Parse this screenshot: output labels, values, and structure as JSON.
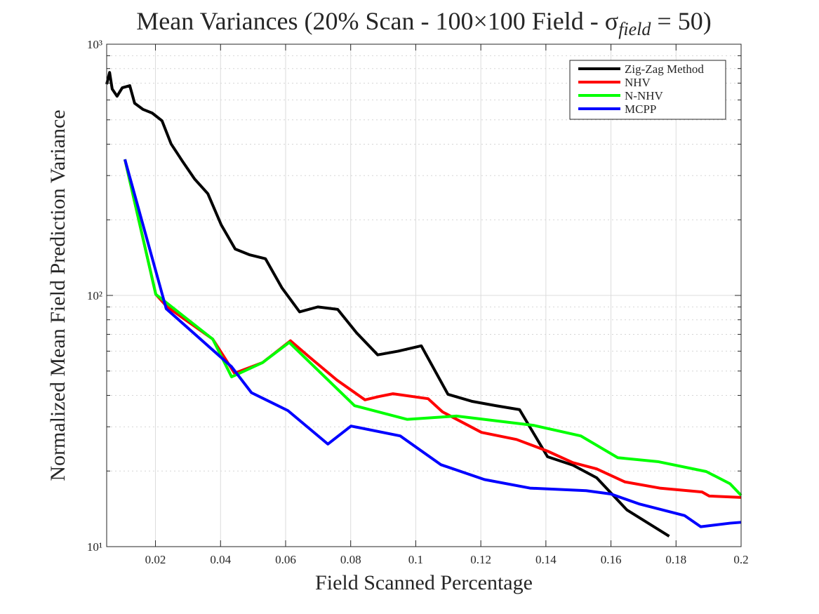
{
  "chart_data": {
    "type": "line",
    "title": [
      "Mean Variances (20% Scan - 100×100 Field - σ",
      "field",
      " = 50)"
    ],
    "xlabel": "Field Scanned Percentage",
    "ylabel": "Normalized Mean Field Prediction Variance",
    "xlim": [
      0.005,
      0.2
    ],
    "xticks": [
      0.02,
      0.04,
      0.06,
      0.08,
      0.1,
      0.12,
      0.14,
      0.16,
      0.18,
      0.2
    ],
    "ylim": [
      10,
      1000
    ],
    "log_y": true,
    "yticks": [
      {
        "value": 10,
        "label": "10¹"
      },
      {
        "value": 100,
        "label": "10²"
      },
      {
        "value": 1000,
        "label": "10³"
      }
    ],
    "yminor_ticks": [
      20,
      30,
      40,
      50,
      60,
      70,
      80,
      90,
      200,
      300,
      400,
      500,
      600,
      700,
      800,
      900
    ],
    "grid": true,
    "legend": "top-right",
    "series": [
      {
        "name": "Zig-Zag Method",
        "color": "#000000",
        "x": [
          0.005,
          0.0059,
          0.0067,
          0.0082,
          0.0098,
          0.0121,
          0.0136,
          0.0162,
          0.019,
          0.022,
          0.0248,
          0.0283,
          0.032,
          0.0361,
          0.0402,
          0.0445,
          0.049,
          0.0538,
          0.0589,
          0.0643,
          0.0699,
          0.076,
          0.0818,
          0.0883,
          0.0946,
          0.1017,
          0.1099,
          0.1172,
          0.1246,
          0.1319,
          0.1405,
          0.1483,
          0.1556,
          0.1649,
          0.1779
        ],
        "values": [
          693,
          772,
          663,
          621,
          671,
          684,
          582,
          550,
          532,
          496,
          401,
          342,
          291,
          254,
          191,
          153,
          145,
          140,
          107,
          86,
          90,
          88,
          71,
          58,
          60,
          63,
          40.4,
          37.9,
          36.4,
          35.1,
          22.8,
          21.1,
          18.8,
          14.0,
          11.0
        ]
      },
      {
        "name": "NHV",
        "color": "#ff0000",
        "x": [
          0.0106,
          0.0201,
          0.0236,
          0.0376,
          0.0443,
          0.0529,
          0.0615,
          0.0672,
          0.0758,
          0.0844,
          0.0887,
          0.093,
          0.1038,
          0.1082,
          0.1202,
          0.131,
          0.1405,
          0.1483,
          0.1556,
          0.1643,
          0.175,
          0.188,
          0.1902,
          0.2
        ],
        "values": [
          348,
          101,
          90,
          67,
          49,
          54,
          66,
          57,
          46,
          38.4,
          39.6,
          40.6,
          38.8,
          34.4,
          28.5,
          26.7,
          24.0,
          21.6,
          20.4,
          18.1,
          17.1,
          16.5,
          15.9,
          15.7
        ]
      },
      {
        "name": "N-NHV",
        "color": "#00ff00",
        "x": [
          0.0106,
          0.0201,
          0.0376,
          0.0434,
          0.0529,
          0.0611,
          0.0812,
          0.0974,
          0.1125,
          0.1362,
          0.1507,
          0.1621,
          0.1744,
          0.1893,
          0.1966,
          0.2
        ],
        "values": [
          348,
          101,
          67,
          47.4,
          54,
          65,
          36.4,
          32.1,
          33.1,
          30.4,
          27.6,
          22.6,
          21.8,
          19.9,
          17.8,
          16.0
        ]
      },
      {
        "name": "MCPP",
        "color": "#0000ff",
        "x": [
          0.0106,
          0.0233,
          0.0434,
          0.0495,
          0.0607,
          0.073,
          0.0801,
          0.0952,
          0.1077,
          0.1211,
          0.1351,
          0.1524,
          0.16,
          0.1686,
          0.1826,
          0.1876,
          0.1966,
          0.2
        ],
        "values": [
          348,
          88.5,
          52,
          41,
          34.8,
          25.6,
          30.2,
          27.6,
          21.2,
          18.5,
          17.1,
          16.7,
          16.2,
          14.8,
          13.3,
          12.0,
          12.4,
          12.5
        ]
      }
    ]
  }
}
